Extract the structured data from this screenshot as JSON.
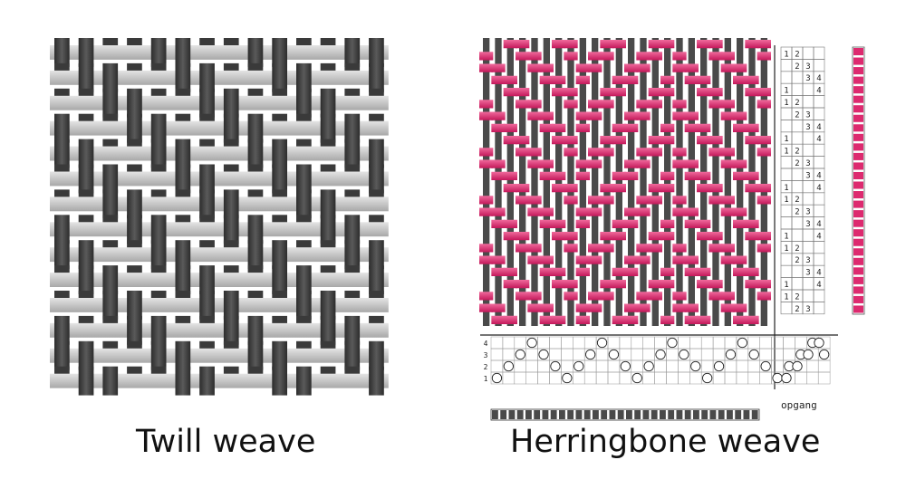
{
  "captions": {
    "twill": "Twill weave",
    "herringbone": "Herringbone weave"
  },
  "draft_label": "opgang",
  "threading_row_numbers": [
    "4",
    "3",
    "2",
    "1"
  ],
  "tieup_grid": [
    [
      "1",
      "2",
      "",
      ""
    ],
    [
      "",
      "2",
      "3",
      ""
    ],
    [
      "",
      "",
      "3",
      "4"
    ],
    [
      "1",
      "",
      "",
      "4"
    ]
  ],
  "colors": {
    "warp": "#4a4a4a",
    "twill_weft": "#c8c8c8",
    "herringbone_weft": "#dd2a6f",
    "grid_line": "#555555",
    "caption_text": "#111111"
  },
  "icons": {
    "twill": "twill-weave-swatch",
    "herringbone": "herringbone-weave-swatch",
    "draft": "weave-draft"
  }
}
